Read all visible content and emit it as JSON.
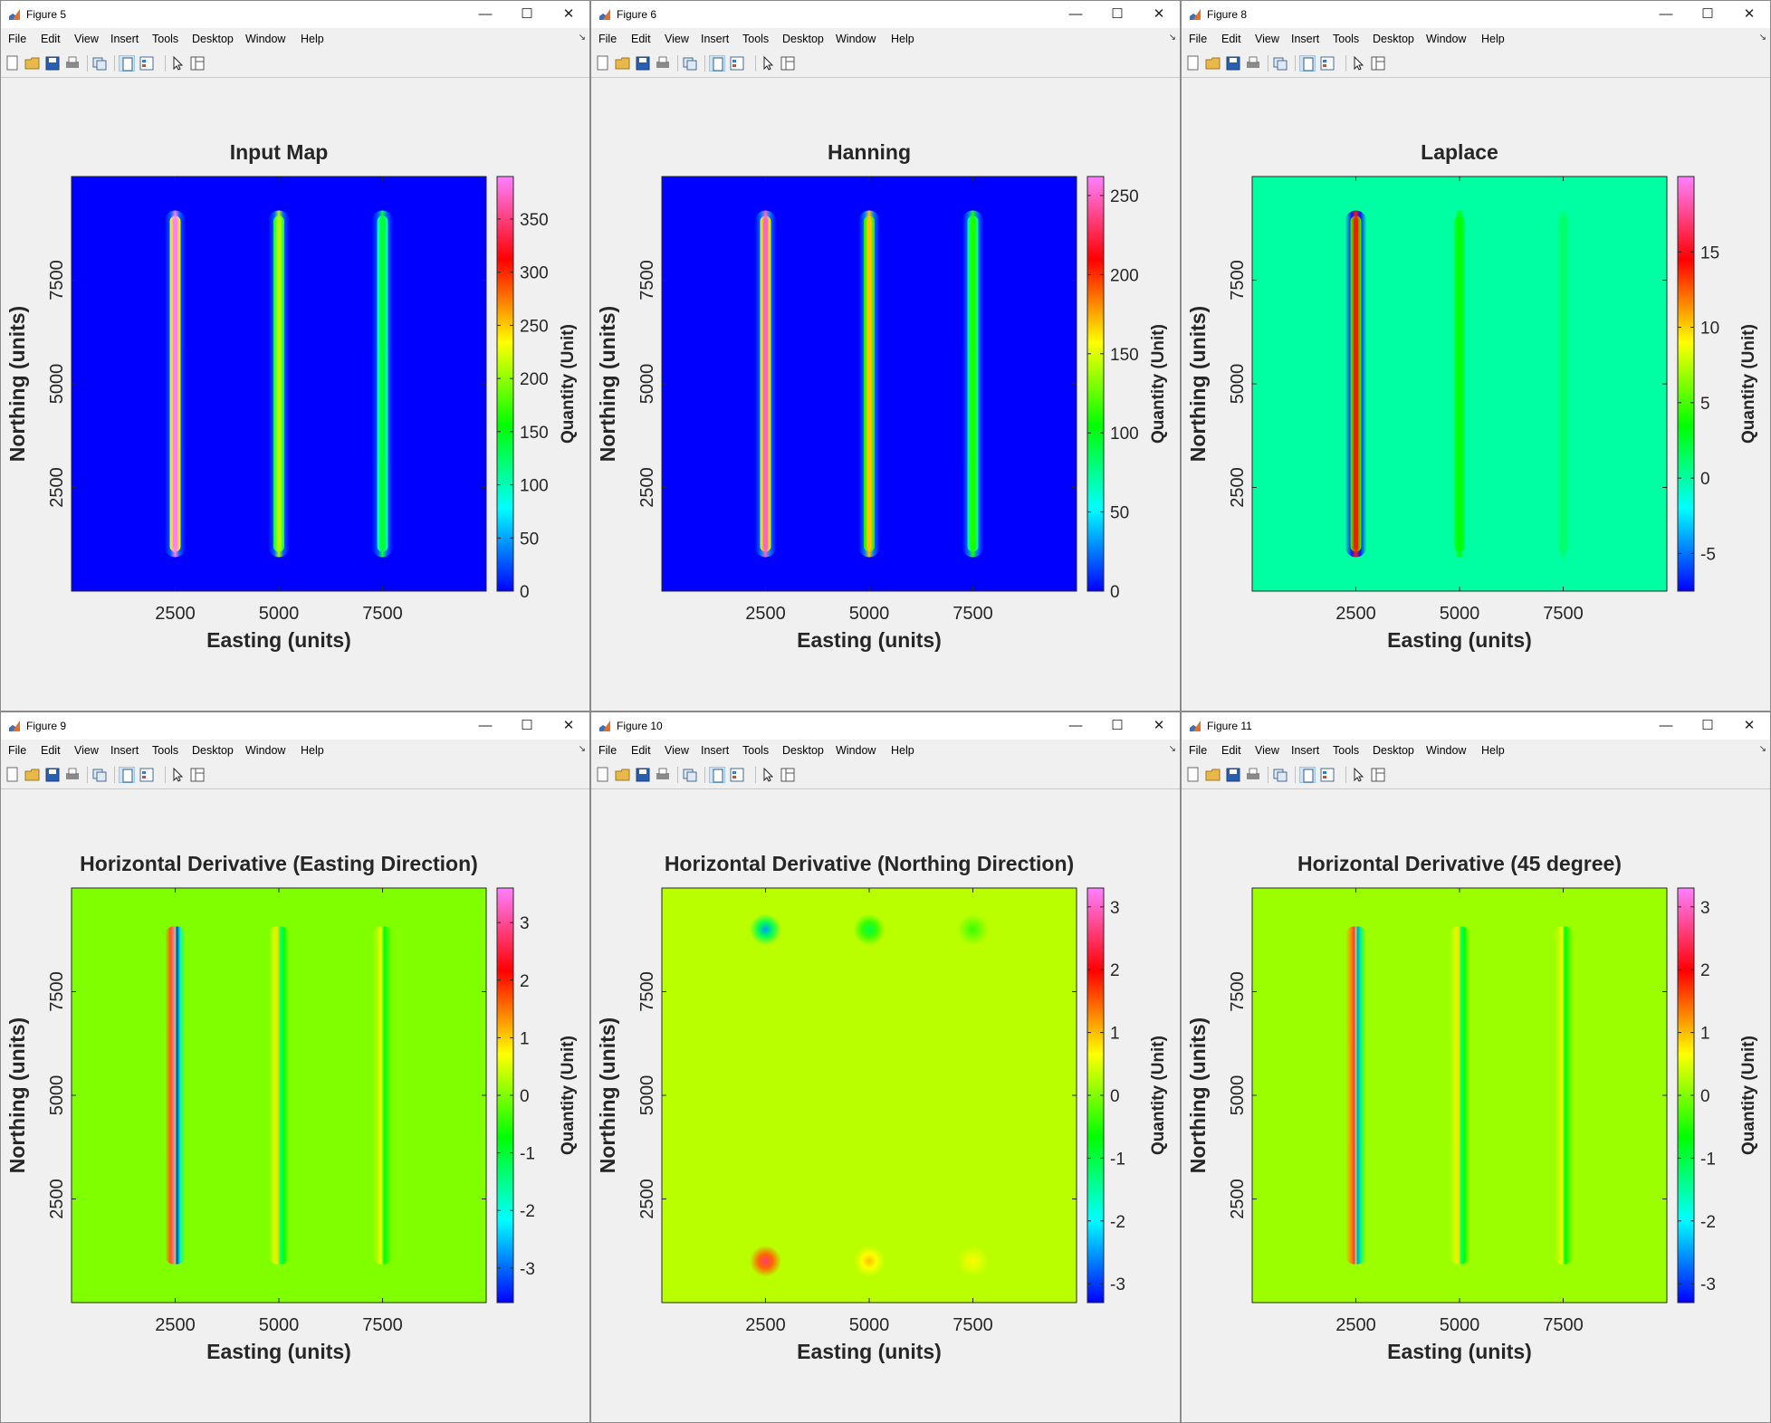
{
  "menu": [
    "File",
    "Edit",
    "View",
    "Insert",
    "Tools",
    "Desktop",
    "Window",
    "Help"
  ],
  "toolbar_tools": [
    "new-figure-icon",
    "open-file-icon",
    "save-icon",
    "print-icon",
    "link-plot-icon",
    "dock-figure-icon",
    "property-inspector-icon",
    "pointer-icon",
    "plot-browser-icon"
  ],
  "window_controls": {
    "minimize": "—",
    "maximize": "☐",
    "close": "✕"
  },
  "colormap": [
    "#0000ff",
    "#00ffff",
    "#00ff00",
    "#ffff00",
    "#ff0000",
    "#ff80ff"
  ],
  "figures": [
    {
      "window_title": "Figure 5",
      "chart_data": {
        "type": "heatmap",
        "title": "Input Map",
        "xlabel": "Easting (units)",
        "ylabel": "Northing (units)",
        "colorbar_label": "Quantity (Unit)",
        "xlim": [
          0,
          10000
        ],
        "ylim": [
          0,
          10000
        ],
        "x_ticks": [
          2500,
          5000,
          7500
        ],
        "y_ticks": [
          2500,
          5000,
          7500
        ],
        "clim": [
          0,
          390
        ],
        "colorbar_ticks": [
          0,
          50,
          100,
          150,
          200,
          250,
          300,
          350
        ],
        "background_value": 0,
        "features": [
          {
            "shape": "vertical-line",
            "x": 2500,
            "y_range": [
              1000,
              9000
            ],
            "peak": 390,
            "halo": 30
          },
          {
            "shape": "vertical-line",
            "x": 5000,
            "y_range": [
              1000,
              9000
            ],
            "peak": 210,
            "halo": 30
          },
          {
            "shape": "vertical-line",
            "x": 7500,
            "y_range": [
              1000,
              9000
            ],
            "peak": 140,
            "halo": 30
          }
        ]
      }
    },
    {
      "window_title": "Figure 6",
      "chart_data": {
        "type": "heatmap",
        "title": "Hanning",
        "xlabel": "Easting (units)",
        "ylabel": "Northing (units)",
        "colorbar_label": "Quantity (Unit)",
        "xlim": [
          0,
          10000
        ],
        "ylim": [
          0,
          10000
        ],
        "x_ticks": [
          2500,
          5000,
          7500
        ],
        "y_ticks": [
          2500,
          5000,
          7500
        ],
        "clim": [
          0,
          262
        ],
        "colorbar_ticks": [
          0,
          50,
          100,
          150,
          200,
          250
        ],
        "background_value": 0,
        "features": [
          {
            "shape": "vertical-line",
            "x": 2500,
            "y_range": [
              1000,
              9000
            ],
            "peak": 250,
            "halo": 25
          },
          {
            "shape": "vertical-line",
            "x": 5000,
            "y_range": [
              1000,
              9000
            ],
            "peak": 170,
            "halo": 25
          },
          {
            "shape": "vertical-line",
            "x": 7500,
            "y_range": [
              1000,
              9000
            ],
            "peak": 110,
            "halo": 25
          }
        ]
      }
    },
    {
      "window_title": "Figure 8",
      "chart_data": {
        "type": "heatmap",
        "title": "Laplace",
        "xlabel": "Easting (units)",
        "ylabel": "Northing (units)",
        "colorbar_label": "Quantity (Unit)",
        "xlim": [
          0,
          10000
        ],
        "ylim": [
          0,
          10000
        ],
        "x_ticks": [
          2500,
          5000,
          7500
        ],
        "y_ticks": [
          2500,
          5000,
          7500
        ],
        "clim": [
          -7.5,
          20
        ],
        "colorbar_ticks": [
          -5,
          0,
          5,
          10,
          15
        ],
        "background_value": 0,
        "features": [
          {
            "shape": "vertical-line",
            "x": 2500,
            "y_range": [
              1000,
              9000
            ],
            "peak": 14,
            "halo": -7
          },
          {
            "shape": "vertical-line",
            "x": 5000,
            "y_range": [
              1000,
              9000
            ],
            "peak": 3.5,
            "halo": 0
          },
          {
            "shape": "vertical-line",
            "x": 7500,
            "y_range": [
              1000,
              9000
            ],
            "peak": 1.2,
            "halo": 0
          }
        ]
      }
    },
    {
      "window_title": "Figure 9",
      "chart_data": {
        "type": "heatmap",
        "title": "Horizontal Derivative (Easting Direction)",
        "xlabel": "Easting (units)",
        "ylabel": "Northing (units)",
        "colorbar_label": "Quantity (Unit)",
        "xlim": [
          0,
          10000
        ],
        "ylim": [
          0,
          10000
        ],
        "x_ticks": [
          2500,
          5000,
          7500
        ],
        "y_ticks": [
          2500,
          5000,
          7500
        ],
        "clim": [
          -3.6,
          3.6
        ],
        "colorbar_ticks": [
          -3,
          -2,
          -1,
          0,
          1,
          2,
          3
        ],
        "background_value": 0,
        "features": [
          {
            "shape": "vertical-dipole",
            "x": 2500,
            "y_range": [
              1000,
              9000
            ],
            "positive": 3.3,
            "negative": -3.3
          },
          {
            "shape": "vertical-dipole",
            "x": 5000,
            "y_range": [
              1000,
              9000
            ],
            "positive": 0.9,
            "negative": -1.5
          },
          {
            "shape": "vertical-dipole",
            "x": 7500,
            "y_range": [
              1000,
              9000
            ],
            "positive": 0.6,
            "negative": -0.8
          }
        ]
      }
    },
    {
      "window_title": "Figure 10",
      "chart_data": {
        "type": "heatmap",
        "title": "Horizontal Derivative (Northing Direction)",
        "xlabel": "Easting (units)",
        "ylabel": "Northing (units)",
        "colorbar_label": "Quantity (Unit)",
        "xlim": [
          0,
          10000
        ],
        "ylim": [
          0,
          10000
        ],
        "x_ticks": [
          2500,
          5000,
          7500
        ],
        "y_ticks": [
          2500,
          5000,
          7500
        ],
        "clim": [
          -3.3,
          3.3
        ],
        "colorbar_ticks": [
          -3,
          -2,
          -1,
          0,
          1,
          2,
          3
        ],
        "background_value": 0.3,
        "features": [
          {
            "shape": "spot",
            "x": 2500,
            "y": 9000,
            "value": -2.5
          },
          {
            "shape": "spot",
            "x": 5000,
            "y": 9000,
            "value": -1.1
          },
          {
            "shape": "spot",
            "x": 7500,
            "y": 9000,
            "value": -0.4
          },
          {
            "shape": "spot",
            "x": 2500,
            "y": 1000,
            "value": 2.6
          },
          {
            "shape": "spot",
            "x": 5000,
            "y": 1000,
            "value": 1.0
          },
          {
            "shape": "spot",
            "x": 7500,
            "y": 1000,
            "value": 0.7
          }
        ]
      }
    },
    {
      "window_title": "Figure 11",
      "chart_data": {
        "type": "heatmap",
        "title": "Horizontal Derivative (45 degree)",
        "xlabel": "Easting (units)",
        "ylabel": "Northing (units)",
        "colorbar_label": "Quantity (Unit)",
        "xlim": [
          0,
          10000
        ],
        "ylim": [
          0,
          10000
        ],
        "x_ticks": [
          2500,
          5000,
          7500
        ],
        "y_ticks": [
          2500,
          5000,
          7500
        ],
        "clim": [
          -3.3,
          3.3
        ],
        "colorbar_ticks": [
          -3,
          -2,
          -1,
          0,
          1,
          2,
          3
        ],
        "background_value": 0.15,
        "features": [
          {
            "shape": "vertical-dipole",
            "x": 2500,
            "y_range": [
              1000,
              9000
            ],
            "positive": 2.5,
            "negative": -2.5
          },
          {
            "shape": "vertical-dipole",
            "x": 5000,
            "y_range": [
              1000,
              9000
            ],
            "positive": 0.8,
            "negative": -1.3
          },
          {
            "shape": "vertical-dipole",
            "x": 7500,
            "y_range": [
              1000,
              9000
            ],
            "positive": 0.6,
            "negative": -0.7
          }
        ]
      }
    }
  ]
}
